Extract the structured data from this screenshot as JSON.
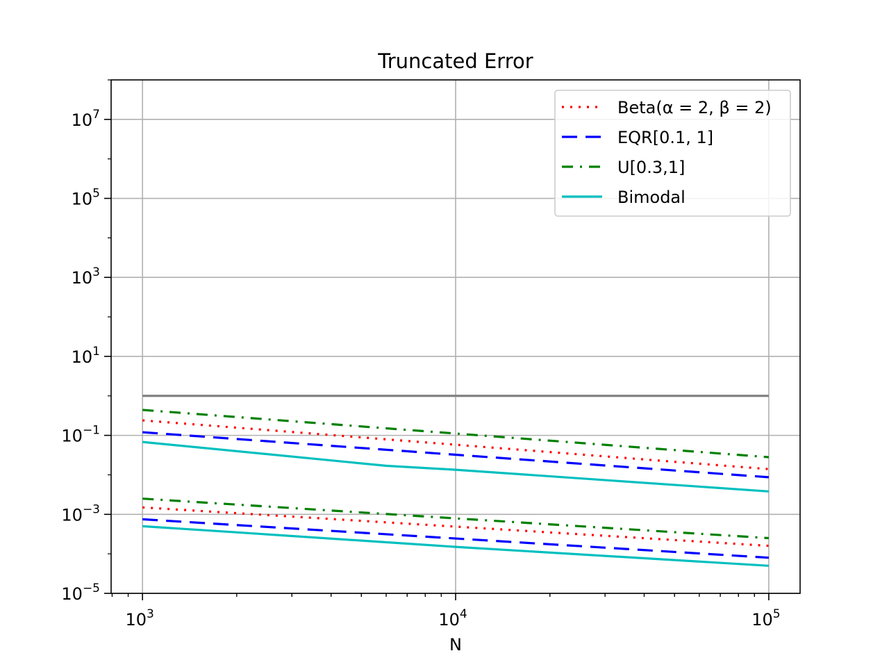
{
  "chart_data": {
    "type": "line",
    "title": "Truncated Error",
    "xlabel": "N",
    "ylabel": "",
    "xscale": "log",
    "yscale": "log",
    "xlim": [
      794,
      125900
    ],
    "ylim": [
      1e-05,
      100000000
    ],
    "grid": true,
    "legend_position": "top-right",
    "x_ticks": [
      {
        "base": "10",
        "exp": "3",
        "value": 1000
      },
      {
        "base": "10",
        "exp": "4",
        "value": 10000
      },
      {
        "base": "10",
        "exp": "5",
        "value": 100000
      }
    ],
    "y_ticks": [
      {
        "base": "10",
        "exp": "−5",
        "value": 1e-05
      },
      {
        "base": "10",
        "exp": "−3",
        "value": 0.001
      },
      {
        "base": "10",
        "exp": "−1",
        "value": 0.1
      },
      {
        "base": "10",
        "exp": "1",
        "value": 10
      },
      {
        "base": "10",
        "exp": "3",
        "value": 1000
      },
      {
        "base": "10",
        "exp": "5",
        "value": 100000
      },
      {
        "base": "10",
        "exp": "7",
        "value": 10000000
      }
    ],
    "reference_line": {
      "color": "#808080",
      "x": [
        1000,
        100000
      ],
      "y": [
        1,
        1
      ]
    },
    "series": [
      {
        "name": "Beta(α = 2, β = 2)",
        "legend_name": "Beta(α = 2, β = 2)",
        "color": "#ff0000",
        "style": "dotted",
        "x": [
          1000,
          100000
        ],
        "y": [
          0.24,
          0.014
        ]
      },
      {
        "name": "EQR[0.1, 1]",
        "legend_name": "EQR[0.1, 1]",
        "color": "#0000ff",
        "style": "dashed",
        "x": [
          1000,
          100000
        ],
        "y": [
          0.12,
          0.0087
        ]
      },
      {
        "name": "U[0.3,1]",
        "legend_name": "U[0.3,1]",
        "color": "#008000",
        "style": "dashdot",
        "x": [
          1000,
          100000
        ],
        "y": [
          0.44,
          0.028
        ]
      },
      {
        "name": "Bimodal",
        "legend_name": "Bimodal",
        "color": "#00bfbf",
        "style": "solid",
        "x": [
          1000,
          6000,
          10000,
          100000
        ],
        "y": [
          0.068,
          0.017,
          0.0135,
          0.0038
        ]
      },
      {
        "name": "Beta(α = 2, β = 2)",
        "color": "#ff0000",
        "style": "dotted",
        "x": [
          1000,
          100000
        ],
        "y": [
          0.0015,
          0.00016
        ]
      },
      {
        "name": "EQR[0.1, 1]",
        "color": "#0000ff",
        "style": "dashed",
        "x": [
          1000,
          100000
        ],
        "y": [
          0.00075,
          8e-05
        ]
      },
      {
        "name": "U[0.3,1]",
        "color": "#008000",
        "style": "dashdot",
        "x": [
          1000,
          100000
        ],
        "y": [
          0.0025,
          0.00025
        ]
      },
      {
        "name": "Bimodal",
        "color": "#00bfbf",
        "style": "solid",
        "x": [
          1000,
          2000,
          10000,
          100000
        ],
        "y": [
          0.0005,
          0.00035,
          0.00015,
          5e-05
        ]
      }
    ]
  }
}
